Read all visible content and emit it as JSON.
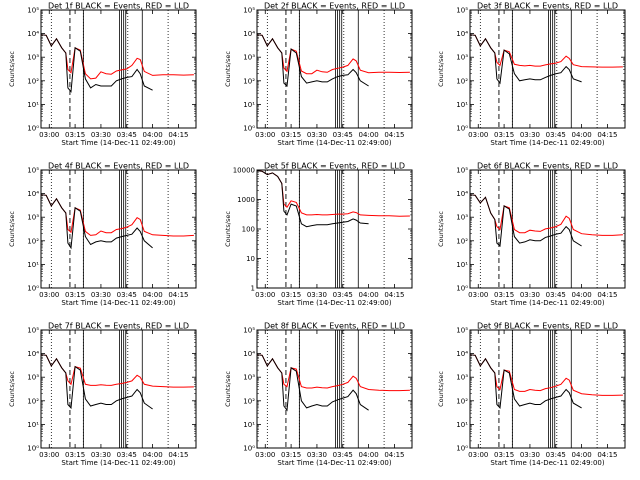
{
  "figure": {
    "panel_defaults": {
      "xlabel": "Start Time (14-Dec-11 02:49:00)",
      "ylabel": "Counts/sec",
      "x_ticks": [
        "03:00",
        "03:15",
        "03:30",
        "03:45",
        "04:00",
        "04:15"
      ],
      "series_colors": {
        "events": "#000000",
        "lld": "#ff0000"
      }
    }
  },
  "chart_data": [
    {
      "type": "line",
      "title": "Det 1f BLACK = Events, RED = LLD",
      "yscale": "log",
      "y_ticks": [
        "10⁰",
        "10¹",
        "10²",
        "10³",
        "10⁴",
        "10⁵"
      ],
      "ylim": [
        1,
        100000
      ],
      "xlim": [
        2.92,
        4.42
      ],
      "x": [
        2.92,
        2.97,
        3.02,
        3.07,
        3.12,
        3.16,
        3.18,
        3.21,
        3.25,
        3.3,
        3.35,
        3.4,
        3.45,
        3.5,
        3.55,
        3.6,
        3.65,
        3.7,
        3.75,
        3.8,
        3.85,
        3.88,
        3.92,
        4.0,
        4.1,
        4.2,
        4.3,
        4.4
      ],
      "series": [
        {
          "key": "lld",
          "values": [
            9000,
            8500,
            3000,
            6000,
            2500,
            1500,
            300,
            220,
            2500,
            2000,
            200,
            120,
            130,
            240,
            200,
            190,
            260,
            290,
            320,
            450,
            900,
            800,
            250,
            170,
            180,
            180,
            175,
            180
          ]
        },
        {
          "key": "events",
          "values": [
            9000,
            8500,
            3000,
            6000,
            2500,
            1500,
            50,
            35,
            2500,
            1800,
            120,
            50,
            70,
            60,
            60,
            60,
            100,
            120,
            140,
            150,
            300,
            200,
            60,
            40,
            null,
            null,
            null,
            null
          ]
        }
      ]
    },
    {
      "type": "line",
      "title": "Det 2f BLACK = Events, RED = LLD",
      "yscale": "log",
      "y_ticks": [
        "10⁰",
        "10¹",
        "10²",
        "10³",
        "10⁴",
        "10⁵"
      ],
      "ylim": [
        1,
        100000
      ],
      "xlim": [
        2.92,
        4.42
      ],
      "x": [
        2.92,
        2.97,
        3.02,
        3.07,
        3.12,
        3.16,
        3.18,
        3.21,
        3.25,
        3.3,
        3.35,
        3.4,
        3.45,
        3.5,
        3.55,
        3.6,
        3.65,
        3.7,
        3.75,
        3.8,
        3.85,
        3.88,
        3.92,
        4.0,
        4.1,
        4.2,
        4.3,
        4.4
      ],
      "series": [
        {
          "key": "lld",
          "values": [
            9000,
            8500,
            3000,
            6000,
            2500,
            1500,
            350,
            250,
            2200,
            1800,
            260,
            200,
            200,
            280,
            240,
            230,
            300,
            340,
            380,
            450,
            850,
            700,
            280,
            220,
            230,
            230,
            225,
            230
          ]
        },
        {
          "key": "events",
          "values": [
            9000,
            8500,
            3000,
            6000,
            2500,
            1500,
            80,
            60,
            2200,
            1500,
            150,
            80,
            90,
            100,
            90,
            90,
            120,
            150,
            170,
            180,
            300,
            220,
            100,
            60,
            null,
            null,
            null,
            null
          ]
        }
      ]
    },
    {
      "type": "line",
      "title": "Det 3f BLACK = Events, RED = LLD",
      "yscale": "log",
      "y_ticks": [
        "10⁰",
        "10¹",
        "10²",
        "10³",
        "10⁴",
        "10⁵"
      ],
      "ylim": [
        1,
        100000
      ],
      "xlim": [
        2.92,
        4.42
      ],
      "x": [
        2.92,
        2.97,
        3.02,
        3.07,
        3.12,
        3.16,
        3.18,
        3.21,
        3.25,
        3.3,
        3.35,
        3.4,
        3.45,
        3.5,
        3.55,
        3.6,
        3.65,
        3.7,
        3.75,
        3.8,
        3.85,
        3.88,
        3.92,
        4.0,
        4.1,
        4.2,
        4.3,
        4.4
      ],
      "series": [
        {
          "key": "lld",
          "values": [
            9000,
            8500,
            3000,
            6000,
            2500,
            1500,
            600,
            450,
            2000,
            1700,
            500,
            450,
            430,
            450,
            420,
            420,
            470,
            520,
            560,
            650,
            1100,
            900,
            480,
            400,
            390,
            380,
            380,
            390
          ]
        },
        {
          "key": "events",
          "values": [
            9000,
            8500,
            3000,
            6000,
            2500,
            1500,
            120,
            80,
            2000,
            1400,
            200,
            100,
            110,
            120,
            110,
            110,
            140,
            170,
            200,
            220,
            400,
            300,
            120,
            90,
            null,
            null,
            null,
            null
          ]
        }
      ]
    },
    {
      "type": "line",
      "title": "Det 4f BLACK = Events, RED = LLD",
      "yscale": "log",
      "y_ticks": [
        "10⁰",
        "10¹",
        "10²",
        "10³",
        "10⁴",
        "10⁵"
      ],
      "ylim": [
        1,
        100000
      ],
      "xlim": [
        2.92,
        4.42
      ],
      "x": [
        2.92,
        2.97,
        3.02,
        3.07,
        3.12,
        3.16,
        3.18,
        3.21,
        3.25,
        3.3,
        3.35,
        3.4,
        3.45,
        3.5,
        3.55,
        3.6,
        3.65,
        3.7,
        3.75,
        3.8,
        3.85,
        3.88,
        3.92,
        4.0,
        4.1,
        4.2,
        4.3,
        4.4
      ],
      "series": [
        {
          "key": "lld",
          "values": [
            9000,
            8500,
            3000,
            6000,
            2500,
            1500,
            300,
            230,
            2500,
            2000,
            250,
            170,
            180,
            260,
            220,
            220,
            300,
            330,
            380,
            480,
            950,
            800,
            250,
            180,
            170,
            160,
            160,
            170
          ]
        },
        {
          "key": "events",
          "values": [
            9000,
            8500,
            3000,
            6000,
            2500,
            1500,
            80,
            50,
            2500,
            1800,
            150,
            70,
            90,
            100,
            90,
            90,
            130,
            150,
            170,
            190,
            350,
            250,
            100,
            50,
            null,
            null,
            null,
            null
          ]
        }
      ]
    },
    {
      "type": "line",
      "title": "Det 5f BLACK = Events, RED = LLD",
      "yscale": "log",
      "y_ticks": [
        "1",
        "10",
        "100",
        "1000",
        "10000"
      ],
      "ylim": [
        1,
        10000
      ],
      "xlim": [
        2.92,
        4.42
      ],
      "x": [
        2.92,
        2.97,
        3.02,
        3.07,
        3.12,
        3.16,
        3.18,
        3.21,
        3.25,
        3.3,
        3.35,
        3.4,
        3.45,
        3.5,
        3.55,
        3.6,
        3.65,
        3.7,
        3.75,
        3.8,
        3.85,
        3.88,
        3.92,
        4.0,
        4.1,
        4.2,
        4.3,
        4.4
      ],
      "series": [
        {
          "key": "lld",
          "values": [
            9500,
            9000,
            7000,
            8000,
            6000,
            3500,
            700,
            550,
            900,
            800,
            350,
            300,
            300,
            310,
            300,
            300,
            310,
            320,
            320,
            330,
            380,
            360,
            300,
            290,
            280,
            280,
            270,
            275
          ]
        },
        {
          "key": "events",
          "values": [
            9500,
            9000,
            7000,
            8000,
            6000,
            3500,
            400,
            300,
            700,
            600,
            150,
            120,
            130,
            140,
            140,
            140,
            150,
            160,
            170,
            180,
            220,
            200,
            160,
            150,
            null,
            null,
            null,
            null
          ]
        }
      ]
    },
    {
      "type": "line",
      "title": "Det 6f BLACK = Events, RED = LLD",
      "yscale": "log",
      "y_ticks": [
        "10⁰",
        "10¹",
        "10²",
        "10³",
        "10⁴",
        "10⁵"
      ],
      "ylim": [
        1,
        100000
      ],
      "xlim": [
        2.92,
        4.42
      ],
      "x": [
        2.92,
        2.97,
        3.02,
        3.07,
        3.12,
        3.16,
        3.18,
        3.21,
        3.25,
        3.3,
        3.35,
        3.4,
        3.45,
        3.5,
        3.55,
        3.6,
        3.65,
        3.7,
        3.75,
        3.8,
        3.85,
        3.88,
        3.92,
        4.0,
        4.1,
        4.2,
        4.3,
        4.4
      ],
      "series": [
        {
          "key": "lld",
          "values": [
            9000,
            8500,
            4000,
            7000,
            1500,
            800,
            400,
            300,
            3000,
            2500,
            300,
            220,
            220,
            280,
            260,
            250,
            320,
            350,
            400,
            500,
            1100,
            900,
            300,
            200,
            180,
            170,
            170,
            180
          ]
        },
        {
          "key": "events",
          "values": [
            9000,
            8500,
            4000,
            7000,
            1500,
            800,
            80,
            60,
            3000,
            2200,
            150,
            80,
            90,
            110,
            100,
            100,
            140,
            160,
            190,
            210,
            400,
            300,
            100,
            60,
            null,
            null,
            null,
            null
          ]
        }
      ]
    },
    {
      "type": "line",
      "title": "Det 7f BLACK = Events, RED = LLD",
      "yscale": "log",
      "y_ticks": [
        "10⁰",
        "10¹",
        "10²",
        "10³",
        "10⁴",
        "10⁵"
      ],
      "ylim": [
        1,
        100000
      ],
      "xlim": [
        2.92,
        4.42
      ],
      "x": [
        2.92,
        2.97,
        3.02,
        3.07,
        3.12,
        3.16,
        3.18,
        3.21,
        3.25,
        3.3,
        3.35,
        3.4,
        3.45,
        3.5,
        3.55,
        3.6,
        3.65,
        3.7,
        3.75,
        3.8,
        3.85,
        3.88,
        3.92,
        4.0,
        4.1,
        4.2,
        4.3,
        4.4
      ],
      "series": [
        {
          "key": "lld",
          "values": [
            9000,
            8500,
            3000,
            6000,
            2500,
            1500,
            700,
            500,
            2800,
            2400,
            500,
            450,
            450,
            480,
            460,
            450,
            500,
            540,
            600,
            700,
            1200,
            1000,
            500,
            420,
            400,
            380,
            380,
            390
          ]
        },
        {
          "key": "events",
          "values": [
            9000,
            8500,
            3000,
            6000,
            2500,
            1500,
            70,
            50,
            2800,
            2000,
            120,
            60,
            70,
            80,
            70,
            70,
            100,
            120,
            140,
            160,
            300,
            220,
            80,
            45,
            null,
            null,
            null,
            null
          ]
        }
      ]
    },
    {
      "type": "line",
      "title": "Det 8f BLACK = Events, RED = LLD",
      "yscale": "log",
      "y_ticks": [
        "10⁰",
        "10¹",
        "10²",
        "10³",
        "10⁴",
        "10⁵"
      ],
      "ylim": [
        1,
        100000
      ],
      "xlim": [
        2.92,
        4.42
      ],
      "x": [
        2.92,
        2.97,
        3.02,
        3.07,
        3.12,
        3.16,
        3.18,
        3.21,
        3.25,
        3.3,
        3.35,
        3.4,
        3.45,
        3.5,
        3.55,
        3.6,
        3.65,
        3.7,
        3.75,
        3.8,
        3.85,
        3.88,
        3.92,
        4.0,
        4.1,
        4.2,
        4.3,
        4.4
      ],
      "series": [
        {
          "key": "lld",
          "values": [
            9000,
            8500,
            3000,
            6000,
            2500,
            1500,
            500,
            400,
            2500,
            2200,
            400,
            350,
            350,
            380,
            360,
            350,
            400,
            440,
            500,
            600,
            1100,
            900,
            400,
            300,
            280,
            270,
            270,
            280
          ]
        },
        {
          "key": "events",
          "values": [
            9000,
            8500,
            3000,
            6000,
            2500,
            1500,
            60,
            40,
            2500,
            1800,
            100,
            50,
            60,
            70,
            60,
            60,
            90,
            110,
            130,
            150,
            280,
            200,
            70,
            40,
            null,
            null,
            null,
            null
          ]
        }
      ]
    },
    {
      "type": "line",
      "title": "Det 9f BLACK = Events, RED = LLD",
      "yscale": "log",
      "y_ticks": [
        "10⁰",
        "10¹",
        "10²",
        "10³",
        "10⁴",
        "10⁵"
      ],
      "ylim": [
        1,
        100000
      ],
      "xlim": [
        2.92,
        4.42
      ],
      "x": [
        2.92,
        2.97,
        3.02,
        3.07,
        3.12,
        3.16,
        3.18,
        3.21,
        3.25,
        3.3,
        3.35,
        3.4,
        3.45,
        3.5,
        3.55,
        3.6,
        3.65,
        3.7,
        3.75,
        3.8,
        3.85,
        3.88,
        3.92,
        4.0,
        4.1,
        4.2,
        4.3,
        4.4
      ],
      "series": [
        {
          "key": "lld",
          "values": [
            9000,
            8500,
            3000,
            6000,
            2500,
            1500,
            400,
            300,
            2000,
            1800,
            300,
            250,
            250,
            300,
            280,
            270,
            330,
            360,
            420,
            500,
            900,
            750,
            280,
            200,
            180,
            170,
            170,
            175
          ]
        },
        {
          "key": "events",
          "values": [
            9000,
            8500,
            3000,
            6000,
            2500,
            1500,
            70,
            50,
            2000,
            1500,
            120,
            60,
            70,
            80,
            70,
            70,
            100,
            120,
            140,
            160,
            300,
            220,
            80,
            50,
            null,
            null,
            null,
            null
          ]
        }
      ]
    }
  ]
}
